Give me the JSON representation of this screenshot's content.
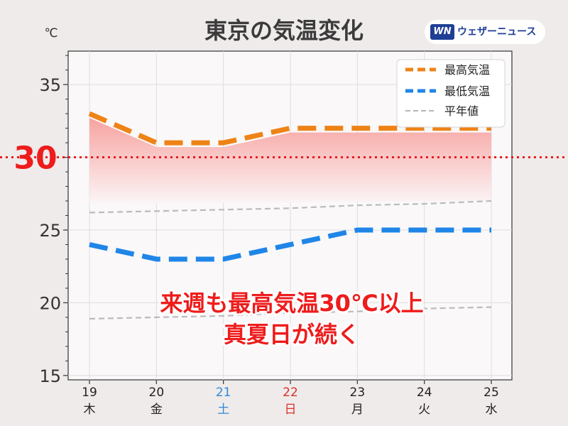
{
  "header": {
    "title": "東京の気温変化",
    "unit_label": "℃",
    "brand": "ウェザーニュース",
    "brand_mark": "WN"
  },
  "annotation": {
    "line1": "来週も最高気温30℃以上",
    "line2": "真夏日が続く",
    "threshold_label": "30"
  },
  "chart_data": {
    "type": "line",
    "categories": [
      "19",
      "20",
      "21",
      "22",
      "23",
      "24",
      "25"
    ],
    "weekdays": [
      "木",
      "金",
      "土",
      "日",
      "月",
      "火",
      "水"
    ],
    "weekday_colors": [
      "#222222",
      "#222222",
      "#2e8ad8",
      "#d9302c",
      "#222222",
      "#222222",
      "#222222"
    ],
    "series": [
      {
        "name": "最高気温",
        "values": [
          33,
          31,
          31,
          32,
          32,
          32,
          32
        ],
        "color": "#ee8316",
        "style": "dashed-thick"
      },
      {
        "name": "最低気温",
        "values": [
          24,
          23,
          23,
          24,
          25,
          25,
          25
        ],
        "color": "#1f86e8",
        "style": "dashed-thick"
      },
      {
        "name": "平年値",
        "values": [
          26.2,
          26.3,
          26.4,
          26.5,
          26.7,
          26.8,
          27.0
        ],
        "color": "#bbbbbb",
        "style": "dashed-thin"
      },
      {
        "name": "",
        "values": [
          18.9,
          19.0,
          19.1,
          19.3,
          19.4,
          19.6,
          19.7
        ],
        "color": "#bbbbbb",
        "style": "dashed-thin"
      }
    ],
    "threshold": {
      "value": 30,
      "color": "#ee1c1c"
    },
    "yticks": [
      15,
      20,
      25,
      30,
      35
    ],
    "ylim": [
      14.7,
      37.3
    ],
    "grid": true,
    "legend_position": "top-right",
    "fill_colors": [
      "#f7a3a0",
      "#fbf5f6"
    ]
  }
}
